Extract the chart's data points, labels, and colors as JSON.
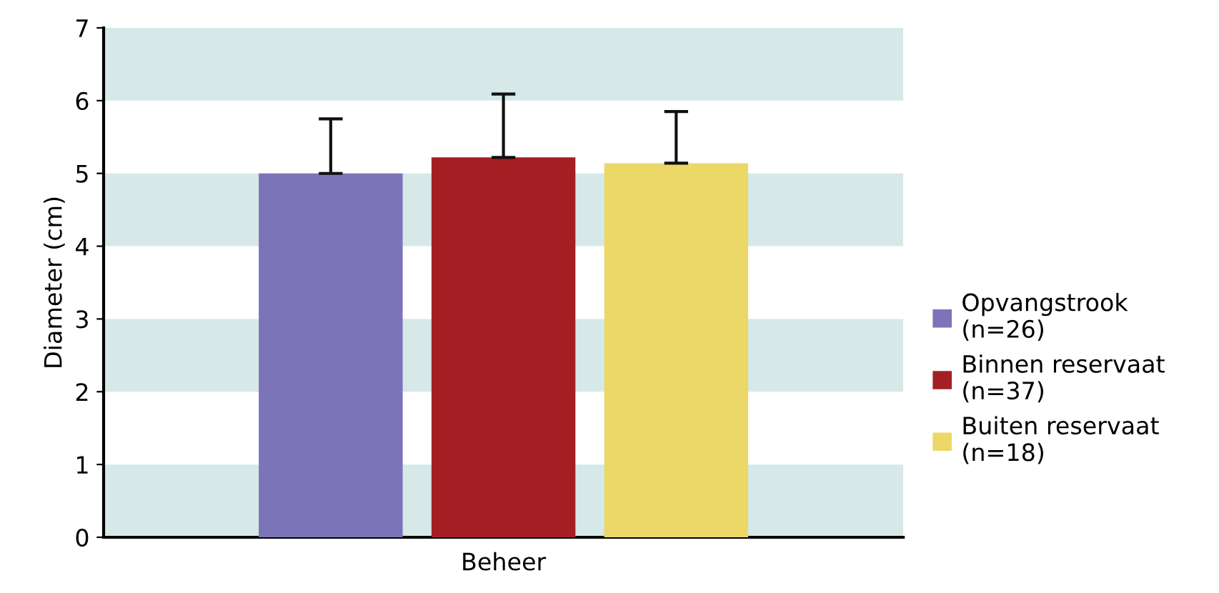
{
  "chart_data": {
    "type": "bar",
    "xlabel": "Beheer",
    "ylabel": "Diameter (cm)",
    "categories": [
      null
    ],
    "series": [
      {
        "name": "Opvangstrook\n(n=26)",
        "color": "#7c74b8",
        "values": [
          5.0
        ],
        "errors": [
          [
            5.0,
            5.75
          ]
        ]
      },
      {
        "name": "Binnen reservaat\n(n=37)",
        "color": "#a41f23",
        "values": [
          5.22
        ],
        "errors": [
          [
            5.22,
            6.09
          ]
        ]
      },
      {
        "name": "Buiten reservaat\n(n=18)",
        "color": "#ecd868",
        "values": [
          5.14
        ],
        "errors": [
          [
            5.14,
            5.85
          ]
        ]
      }
    ],
    "ylim": [
      0,
      7
    ],
    "yticks": [
      0,
      1,
      2,
      3,
      4,
      5,
      6,
      7
    ],
    "bands": [
      {
        "axis": "y",
        "from": 0,
        "to": 1,
        "color": "#d6e9e8"
      },
      {
        "axis": "y",
        "from": 2,
        "to": 3,
        "color": "#d6e9e8"
      },
      {
        "axis": "y",
        "from": 4,
        "to": 5,
        "color": "#d6e9e8"
      },
      {
        "axis": "y",
        "from": 6,
        "to": 7,
        "color": "#d6e9e8"
      }
    ],
    "grid": false,
    "legend": "right"
  }
}
